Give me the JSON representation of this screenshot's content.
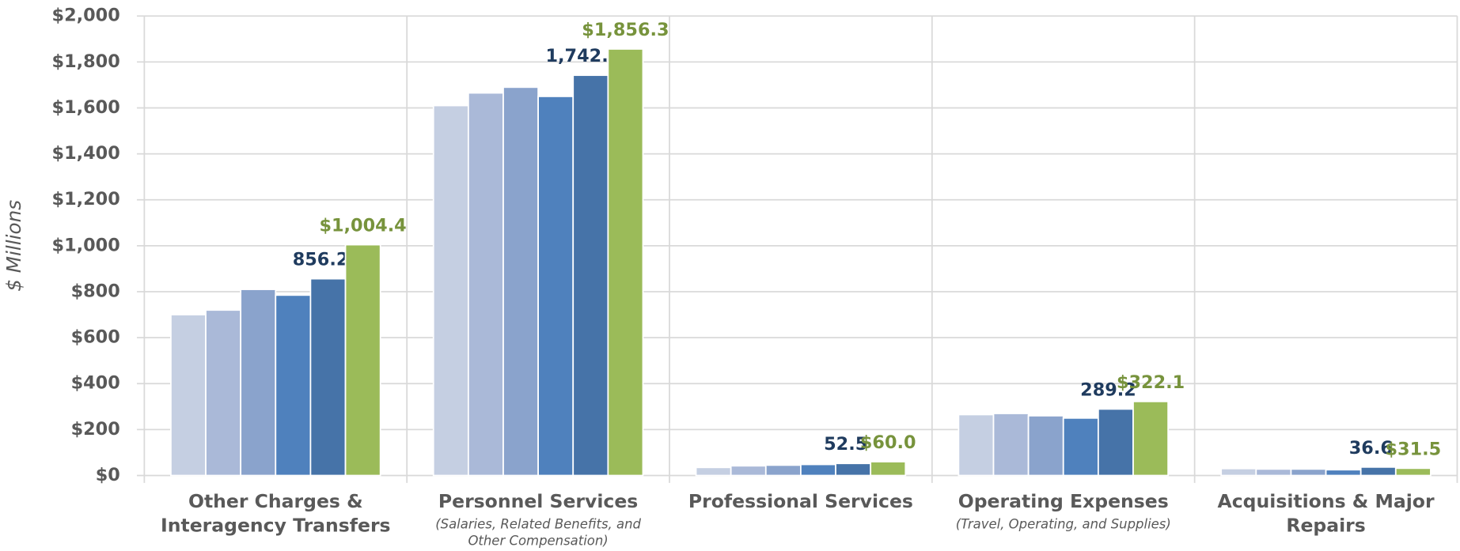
{
  "chart_data": {
    "type": "bar",
    "ylabel": "$ Millions",
    "categories": [
      [
        "Other Charges &",
        "Interagency Transfers"
      ],
      [
        "Personnel Services"
      ],
      [
        "Professional Services"
      ],
      [
        "Operating Expenses"
      ],
      [
        "Acquisitions & Major",
        "Repairs"
      ]
    ],
    "category_notes": [
      null,
      [
        "(Salaries, Related Benefits, and",
        "Other Compensation)"
      ],
      null,
      [
        "(Travel, Operating, and Supplies)"
      ],
      null
    ],
    "series": [
      {
        "color": "#c5cfe2",
        "values": [
          700,
          1610,
          35,
          265,
          30
        ]
      },
      {
        "color": "#aab9d8",
        "values": [
          720,
          1665,
          42,
          270,
          28
        ]
      },
      {
        "color": "#8aa3cc",
        "values": [
          810,
          1690,
          45,
          260,
          28
        ]
      },
      {
        "color": "#4f81bd",
        "values": [
          785,
          1650,
          48,
          250,
          25
        ]
      },
      {
        "color": "#4673a8",
        "label_color": "#1f3b5e",
        "values": [
          856.2,
          1742.1,
          52.5,
          289.2,
          36.6
        ],
        "value_labels": [
          "856.2",
          "1,742.1",
          "52.5",
          "289.2",
          "36.6"
        ]
      },
      {
        "color": "#9bbb59",
        "label_color": "#77933c",
        "values": [
          1004.4,
          1856.3,
          60.0,
          322.1,
          31.5
        ],
        "value_labels": [
          "$1,004.4",
          "$1,856.3",
          "$60.0",
          "$322.1",
          "$31.5"
        ]
      }
    ],
    "ylim": [
      0,
      2000
    ],
    "yticks": [
      {
        "value": 0,
        "label": "$0"
      },
      {
        "value": 200,
        "label": "$200"
      },
      {
        "value": 400,
        "label": "$400"
      },
      {
        "value": 600,
        "label": "$600"
      },
      {
        "value": 800,
        "label": "$800"
      },
      {
        "value": 1000,
        "label": "$1,000"
      },
      {
        "value": 1200,
        "label": "$1,200"
      },
      {
        "value": 1400,
        "label": "$1,400"
      },
      {
        "value": 1600,
        "label": "$1,600"
      },
      {
        "value": 1800,
        "label": "$1,800"
      },
      {
        "value": 2000,
        "label": "$2,000"
      }
    ],
    "grid": true
  }
}
